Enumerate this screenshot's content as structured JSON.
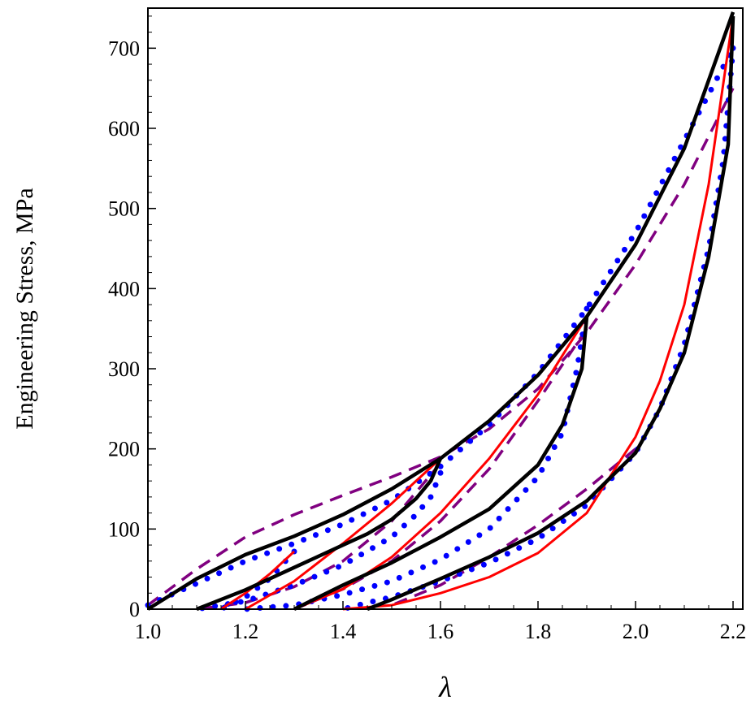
{
  "chart_data": {
    "type": "line",
    "xlabel": "λ",
    "ylabel": "Engineering Stress, MPa",
    "xlim": [
      1.0,
      2.22
    ],
    "ylim": [
      0,
      750
    ],
    "x_ticks": [
      "1.0",
      "1.2",
      "1.4",
      "1.6",
      "1.8",
      "2.0",
      "2.2"
    ],
    "y_ticks": [
      "0",
      "100",
      "200",
      "300",
      "400",
      "500",
      "600",
      "700"
    ],
    "grid": false,
    "legend": "none",
    "series": [
      {
        "style": "black-solid",
        "color": "#000000",
        "x": [
          1.0,
          1.1,
          1.2,
          1.3,
          1.4,
          1.5,
          1.6,
          1.7,
          1.8,
          1.9,
          2.0,
          2.1,
          2.2
        ],
        "y": [
          0,
          38,
          68,
          91,
          118,
          150,
          188,
          235,
          292,
          365,
          455,
          575,
          745
        ]
      },
      {
        "style": "black-solid",
        "color": "#000000",
        "x": [
          1.6,
          1.58,
          1.55,
          1.5,
          1.45,
          1.4,
          1.3,
          1.2,
          1.1
        ],
        "y": [
          188,
          160,
          138,
          112,
          94,
          80,
          52,
          24,
          0
        ]
      },
      {
        "style": "black-solid",
        "color": "#000000",
        "x": [
          1.9,
          1.89,
          1.85,
          1.8,
          1.7,
          1.6,
          1.5,
          1.4,
          1.3
        ],
        "y": [
          365,
          300,
          230,
          180,
          125,
          90,
          58,
          30,
          0
        ]
      },
      {
        "style": "black-solid",
        "color": "#000000",
        "x": [
          2.2,
          2.19,
          2.15,
          2.1,
          2.05,
          2.0,
          1.9,
          1.8,
          1.7,
          1.6,
          1.5,
          1.45
        ],
        "y": [
          740,
          580,
          440,
          320,
          250,
          195,
          135,
          95,
          65,
          38,
          12,
          0
        ]
      },
      {
        "style": "red-solid",
        "color": "#ff0000",
        "x": [
          1.3,
          1.25,
          1.2,
          1.15
        ],
        "y": [
          72,
          44,
          20,
          0
        ]
      },
      {
        "style": "red-solid",
        "color": "#ff0000",
        "x": [
          1.6,
          1.5,
          1.4,
          1.3,
          1.2
        ],
        "y": [
          188,
          132,
          82,
          35,
          0
        ]
      },
      {
        "style": "red-solid",
        "color": "#ff0000",
        "x": [
          1.9,
          1.8,
          1.7,
          1.6,
          1.5,
          1.4,
          1.3
        ],
        "y": [
          365,
          268,
          188,
          120,
          65,
          25,
          0
        ]
      },
      {
        "style": "red-solid",
        "color": "#ff0000",
        "x": [
          2.2,
          2.15,
          2.1,
          2.05,
          2.0,
          1.9,
          1.8,
          1.7,
          1.6,
          1.5,
          1.4
        ],
        "y": [
          740,
          530,
          380,
          285,
          215,
          120,
          70,
          40,
          20,
          5,
          0
        ]
      },
      {
        "style": "blue-dotted",
        "color": "#0000ff",
        "x": [
          1.0,
          1.1,
          1.2,
          1.3,
          1.4,
          1.5,
          1.6,
          1.7,
          1.8,
          1.9,
          2.0,
          2.1,
          2.2
        ],
        "y": [
          5,
          32,
          60,
          82,
          106,
          136,
          178,
          230,
          295,
          375,
          470,
          585,
          700
        ]
      },
      {
        "style": "blue-dotted",
        "color": "#0000ff",
        "x": [
          1.3,
          1.25,
          1.2,
          1.15
        ],
        "y": [
          72,
          38,
          15,
          0
        ]
      },
      {
        "style": "blue-dotted",
        "color": "#0000ff",
        "x": [
          1.6,
          1.58,
          1.55,
          1.5,
          1.4,
          1.3,
          1.2,
          1.1
        ],
        "y": [
          170,
          140,
          118,
          90,
          55,
          30,
          10,
          0
        ]
      },
      {
        "style": "blue-dotted",
        "color": "#0000ff",
        "x": [
          1.9,
          1.88,
          1.85,
          1.8,
          1.7,
          1.6,
          1.5,
          1.4,
          1.3,
          1.2
        ],
        "y": [
          375,
          300,
          220,
          165,
          100,
          62,
          35,
          18,
          5,
          0
        ]
      },
      {
        "style": "blue-dotted",
        "color": "#0000ff",
        "x": [
          2.2,
          2.18,
          2.15,
          2.1,
          2.05,
          2.0,
          1.9,
          1.8,
          1.7,
          1.6,
          1.5,
          1.45,
          1.4
        ],
        "y": [
          700,
          560,
          450,
          330,
          250,
          195,
          130,
          88,
          58,
          35,
          15,
          8,
          0
        ]
      },
      {
        "style": "purple-dashed",
        "color": "#800080",
        "x": [
          1.0,
          1.1,
          1.2,
          1.3,
          1.4,
          1.5,
          1.6,
          1.7,
          1.8,
          1.9,
          2.0,
          2.1,
          2.2
        ],
        "y": [
          5,
          50,
          90,
          118,
          142,
          165,
          190,
          225,
          275,
          345,
          430,
          530,
          650
        ]
      },
      {
        "style": "purple-dashed",
        "color": "#800080",
        "x": [
          1.6,
          1.5,
          1.4,
          1.3,
          1.2,
          1.1
        ],
        "y": [
          182,
          110,
          60,
          28,
          8,
          0
        ]
      },
      {
        "style": "purple-dashed",
        "color": "#800080",
        "x": [
          1.9,
          1.8,
          1.7,
          1.6,
          1.5,
          1.4,
          1.3
        ],
        "y": [
          350,
          260,
          175,
          110,
          60,
          25,
          0
        ]
      },
      {
        "style": "purple-dashed",
        "color": "#800080",
        "x": [
          2.0,
          1.9,
          1.8,
          1.7,
          1.6,
          1.5
        ],
        "y": [
          200,
          150,
          105,
          65,
          30,
          5
        ]
      }
    ]
  }
}
